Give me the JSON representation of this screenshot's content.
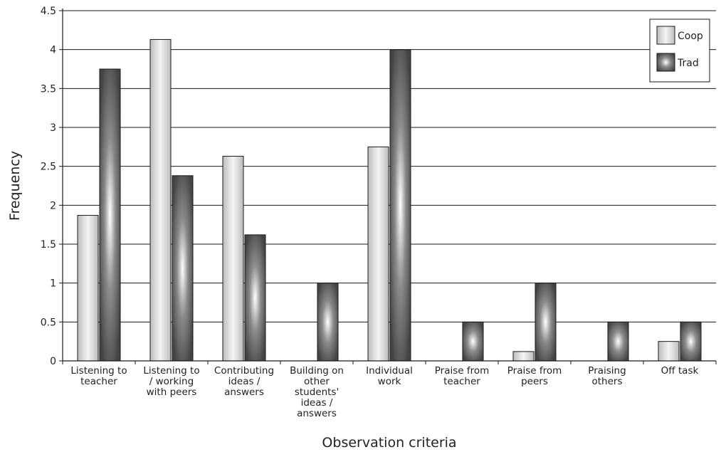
{
  "chart_data": {
    "type": "bar",
    "title": "",
    "xlabel": "Observation criteria",
    "ylabel": "Frequency",
    "ylim": [
      0,
      4.5
    ],
    "yticks": [
      "0",
      "0.5",
      "1",
      "1.5",
      "2",
      "2.5",
      "3",
      "3.5",
      "4",
      "4.5"
    ],
    "grid": true,
    "legend_position": "top-right",
    "categories": [
      [
        "Listening to",
        "teacher"
      ],
      [
        "Listening to",
        "/ working",
        "with peers"
      ],
      [
        "Contributing",
        "ideas /",
        "answers"
      ],
      [
        "Building on",
        "other",
        "students'",
        "ideas /",
        "answers"
      ],
      [
        "Individual",
        "work"
      ],
      [
        "Praise from",
        "teacher"
      ],
      [
        "Praise from",
        "peers"
      ],
      [
        "Praising",
        "others"
      ],
      [
        "Off task"
      ]
    ],
    "series": [
      {
        "name": "Coop",
        "color": "#d9d9d9",
        "values": [
          1.87,
          4.13,
          2.63,
          0,
          2.75,
          0,
          0.12,
          0,
          0.25
        ]
      },
      {
        "name": "Trad",
        "color": "#555555",
        "values": [
          3.75,
          2.38,
          1.62,
          1.0,
          4.0,
          0.5,
          1.0,
          0.5,
          0.5
        ]
      }
    ]
  }
}
